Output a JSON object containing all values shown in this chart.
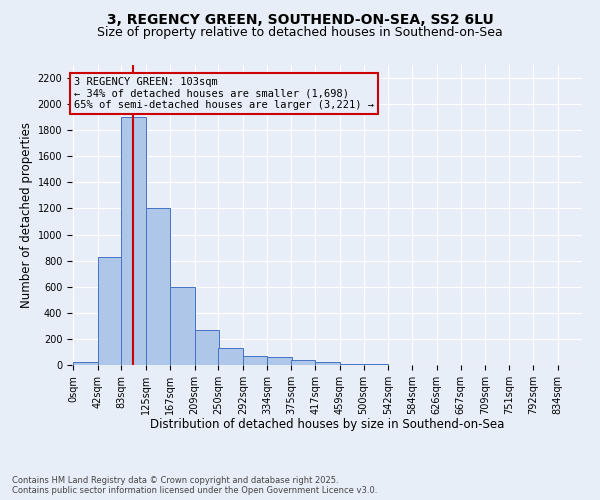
{
  "title1": "3, REGENCY GREEN, SOUTHEND-ON-SEA, SS2 6LU",
  "title2": "Size of property relative to detached houses in Southend-on-Sea",
  "xlabel": "Distribution of detached houses by size in Southend-on-Sea",
  "ylabel": "Number of detached properties",
  "footnote": "Contains HM Land Registry data © Crown copyright and database right 2025.\nContains public sector information licensed under the Open Government Licence v3.0.",
  "bin_labels": [
    "0sqm",
    "42sqm",
    "83sqm",
    "125sqm",
    "167sqm",
    "209sqm",
    "250sqm",
    "292sqm",
    "334sqm",
    "375sqm",
    "417sqm",
    "459sqm",
    "500sqm",
    "542sqm",
    "584sqm",
    "626sqm",
    "667sqm",
    "709sqm",
    "751sqm",
    "792sqm",
    "834sqm"
  ],
  "bin_edges": [
    0,
    42,
    83,
    125,
    167,
    209,
    250,
    292,
    334,
    375,
    417,
    459,
    500,
    542,
    584,
    626,
    667,
    709,
    751,
    792,
    834
  ],
  "bar_values": [
    20,
    830,
    1900,
    1200,
    600,
    270,
    130,
    70,
    60,
    40,
    20,
    10,
    5,
    3,
    2,
    1,
    1,
    1,
    0,
    0
  ],
  "bar_color": "#aec6e8",
  "bar_edge_color": "#4472c4",
  "property_size": 103,
  "red_line_color": "#cc0000",
  "annotation_text": "3 REGENCY GREEN: 103sqm\n← 34% of detached houses are smaller (1,698)\n65% of semi-detached houses are larger (3,221) →",
  "annotation_box_color": "#cc0000",
  "ylim": [
    0,
    2300
  ],
  "yticks": [
    0,
    200,
    400,
    600,
    800,
    1000,
    1200,
    1400,
    1600,
    1800,
    2000,
    2200
  ],
  "background_color": "#e8eef8",
  "grid_color": "#ffffff",
  "title1_fontsize": 10,
  "title2_fontsize": 9,
  "xlabel_fontsize": 8.5,
  "ylabel_fontsize": 8.5,
  "annotation_fontsize": 7.5,
  "footnote_fontsize": 6,
  "tick_fontsize": 7
}
